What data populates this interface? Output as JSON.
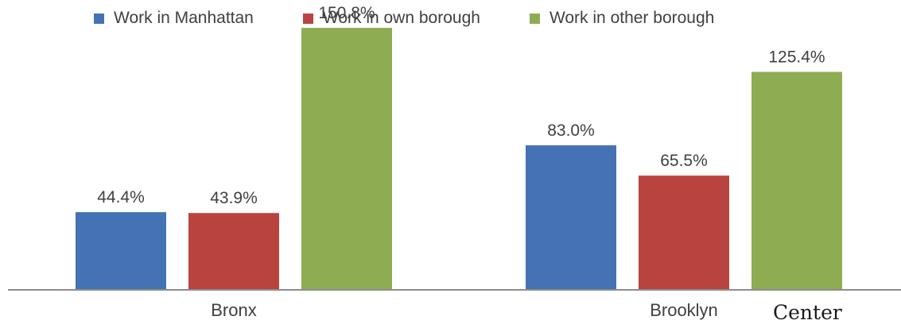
{
  "chart_data": {
    "type": "bar",
    "title": "",
    "xlabel": "",
    "ylabel": "",
    "categories": [
      "Bronx",
      "Brooklyn"
    ],
    "series": [
      {
        "name": "Work in Manhattan",
        "color": "#4472b4",
        "values": [
          44.4,
          83.0
        ],
        "labels": [
          "44.4%",
          "83.0%"
        ]
      },
      {
        "name": "Work in own borough",
        "color": "#b9443f",
        "values": [
          43.9,
          65.5
        ],
        "labels": [
          "43.9%",
          "65.5%"
        ]
      },
      {
        "name": "Work in other borough",
        "color": "#8ead52",
        "values": [
          150.8,
          125.4
        ],
        "labels": [
          "150.8%",
          "125.4%"
        ]
      }
    ],
    "ylim": [
      0,
      160
    ],
    "grid": false,
    "legend_position": "top"
  },
  "watermark": {
    "text": "Center"
  }
}
